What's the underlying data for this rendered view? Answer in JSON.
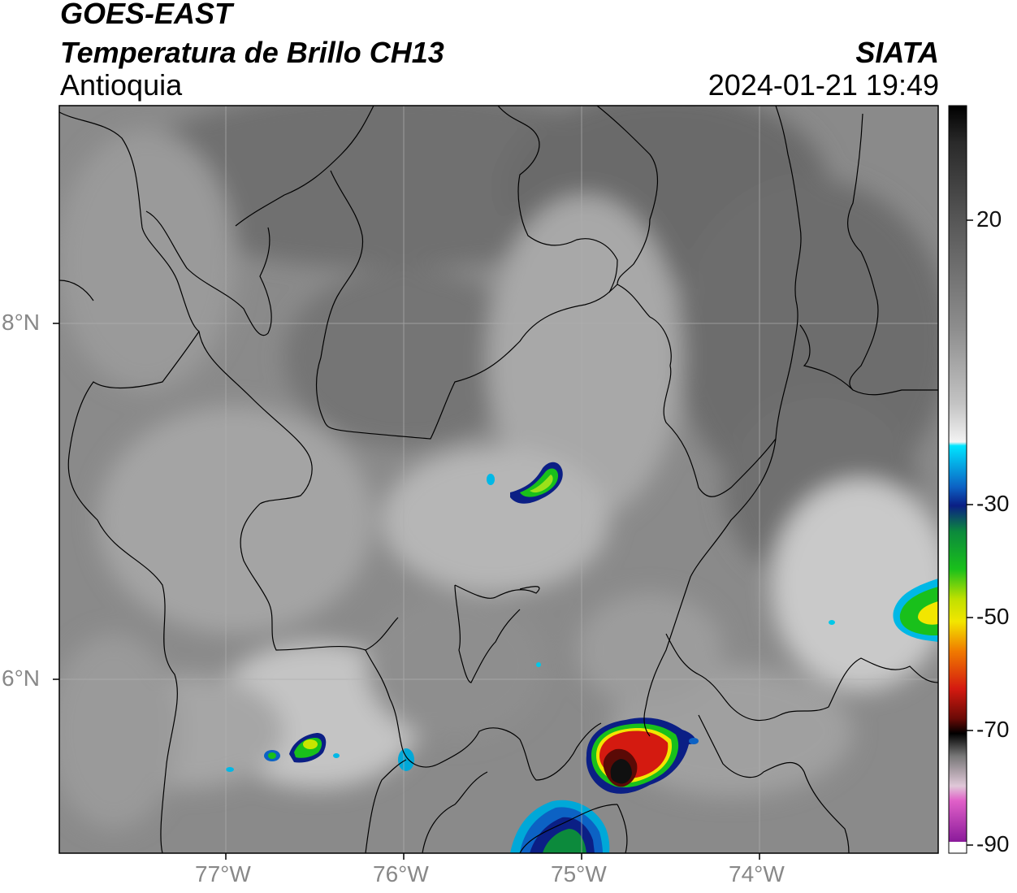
{
  "header": {
    "satellite": "GOES-EAST",
    "product": "Temperatura de Brillo CH13",
    "region": "Antioquia",
    "organization": "SIATA",
    "datetime": "2024-01-21 19:49"
  },
  "map": {
    "lon_range": [
      -77.95,
      -73.0
    ],
    "lat_range": [
      5.0,
      9.2
    ],
    "lon_ticks": [
      "77°W",
      "76°W",
      "75°W",
      "74°W"
    ],
    "lat_ticks": [
      "8°N",
      "6°N"
    ],
    "gridlines": true
  },
  "colorbar": {
    "tick_labels": [
      "20",
      "-30",
      "-50",
      "-70",
      "-90"
    ],
    "range": [
      -90,
      35
    ],
    "colors": {
      "warm": "#6d6d6d",
      "mid": "#bdbdbd",
      "cold": "#ffffff",
      "cyan": "#00e5ff",
      "blue": "#0b2d8f",
      "green": "#19c01b",
      "yellow": "#f2e600",
      "red": "#d41a10",
      "black": "#000000",
      "magenta": "#c02fc0"
    }
  }
}
